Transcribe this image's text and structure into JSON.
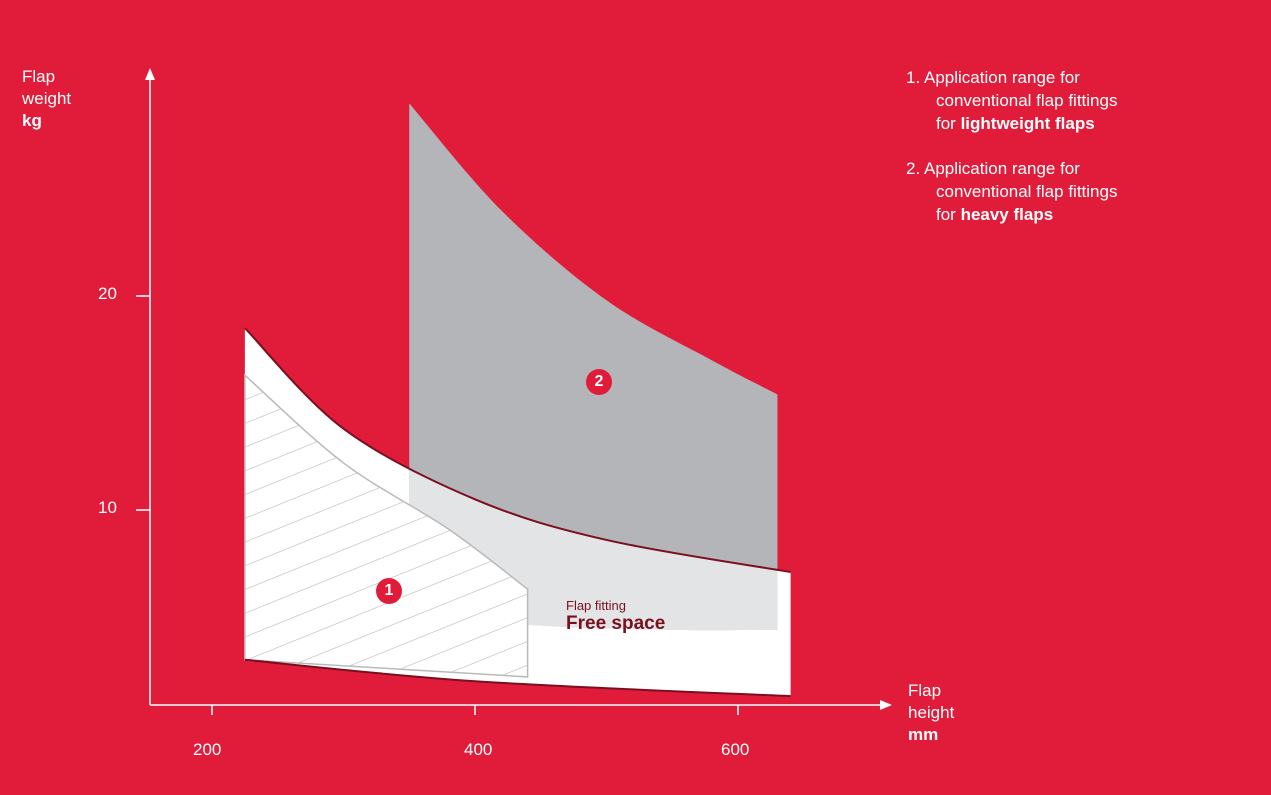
{
  "chart_data": {
    "type": "area",
    "y_axis": {
      "label_lines": [
        "Flap",
        "weight"
      ],
      "unit": "kg",
      "ticks": [
        "10",
        "20"
      ]
    },
    "x_axis": {
      "label_lines": [
        "Flap",
        "height"
      ],
      "unit": "mm",
      "ticks": [
        "200",
        "400",
        "600"
      ]
    },
    "xlim": [
      155,
      700
    ],
    "ylim": [
      0,
      30
    ],
    "regions": [
      {
        "id": "1",
        "description_parts": [
          "Application range for",
          "conventional flap fittings",
          "for ",
          "lightweight flaps"
        ],
        "fill": "hatched",
        "x_range": [
          225,
          440
        ],
        "upper_boundary": [
          [
            225,
            16.3
          ],
          [
            300,
            12.2
          ],
          [
            380,
            9.1
          ],
          [
            440,
            6.3
          ]
        ],
        "lower_boundary": [
          [
            225,
            3.0
          ],
          [
            440,
            2.2
          ]
        ]
      },
      {
        "id": "2",
        "description_parts": [
          "Application range for",
          "conventional flap fittings",
          "for ",
          "heavy flaps"
        ],
        "fill": "#b4b5b8",
        "x_range": [
          350,
          630
        ],
        "upper_boundary": [
          [
            350,
            29.0
          ],
          [
            420,
            24.0
          ],
          [
            500,
            19.8
          ],
          [
            580,
            17.0
          ],
          [
            630,
            15.4
          ]
        ],
        "lower_boundary": [
          [
            350,
            5.2
          ],
          [
            450,
            4.6
          ],
          [
            550,
            4.4
          ],
          [
            630,
            4.4
          ]
        ]
      },
      {
        "id": "free-space",
        "fill": "#ffffff",
        "x_range": [
          225,
          640
        ],
        "upper_boundary": [
          [
            225,
            18.5
          ],
          [
            300,
            13.8
          ],
          [
            400,
            10.5
          ],
          [
            500,
            8.6
          ],
          [
            640,
            7.1
          ]
        ],
        "lower_boundary": [
          [
            225,
            3.0
          ],
          [
            400,
            2.0
          ],
          [
            640,
            1.3
          ]
        ]
      }
    ],
    "annotations": {
      "free_space_small": "Flap fitting",
      "free_space_big": "Free space"
    },
    "colors": {
      "background": "#e01c3a",
      "heavy_region": "#b4b5b8",
      "free_space": "#ffffff",
      "boundary_line": "#7a0f1f"
    },
    "grid": false
  }
}
